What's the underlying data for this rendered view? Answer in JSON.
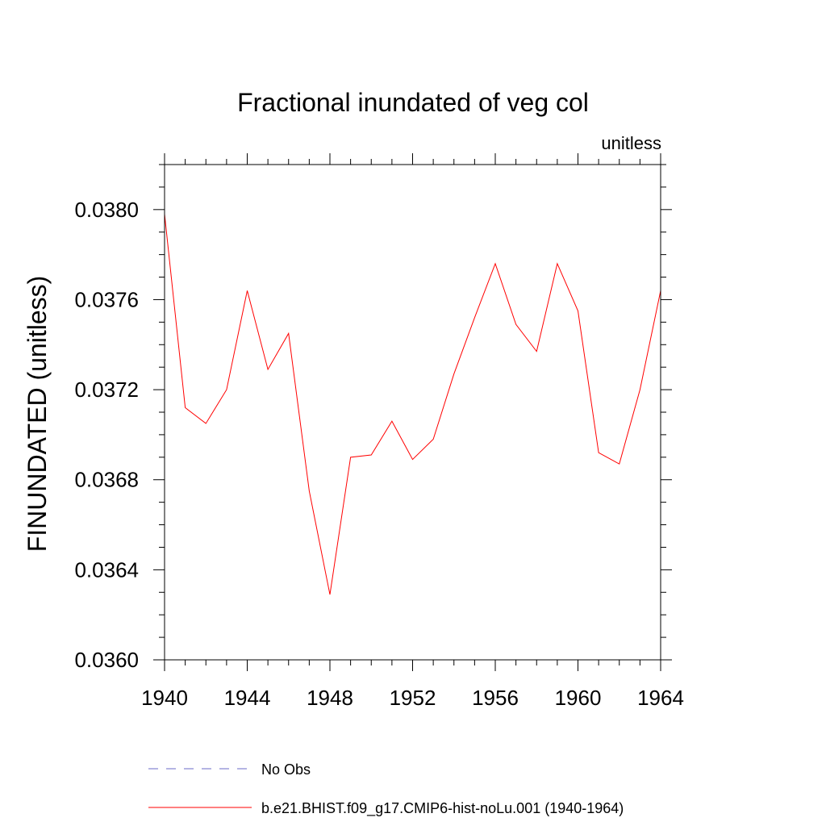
{
  "chart_data": {
    "type": "line",
    "title": "Fractional inundated of veg col",
    "units_label": "unitless",
    "ylabel": "FINUNDATED  (unitless)",
    "xlabel": "",
    "xlim": [
      1940,
      1964
    ],
    "ylim": [
      0.036,
      0.0382
    ],
    "x_ticks": [
      "1940",
      "1944",
      "1948",
      "1952",
      "1956",
      "1960",
      "1964"
    ],
    "y_ticks": [
      "0.0360",
      "0.0364",
      "0.0368",
      "0.0372",
      "0.0376",
      "0.0380"
    ],
    "grid": false,
    "legend_position": "bottom",
    "series": [
      {
        "name": "No Obs",
        "color": "#6b6bc8",
        "style": "dashed",
        "x": [],
        "values": []
      },
      {
        "name": "b.e21.BHIST.f09_g17.CMIP6-hist-noLu.001 (1940-1964)",
        "color": "#ff0000",
        "style": "solid",
        "x": [
          1940,
          1941,
          1942,
          1943,
          1944,
          1945,
          1946,
          1947,
          1948,
          1949,
          1950,
          1951,
          1952,
          1953,
          1954,
          1955,
          1956,
          1957,
          1958,
          1959,
          1960,
          1961,
          1962,
          1963,
          1964
        ],
        "values": [
          0.03798,
          0.03712,
          0.03705,
          0.0372,
          0.03764,
          0.03729,
          0.03745,
          0.03675,
          0.03629,
          0.0369,
          0.03691,
          0.03706,
          0.03689,
          0.03698,
          0.03727,
          0.03752,
          0.03776,
          0.03749,
          0.03737,
          0.03776,
          0.03755,
          0.03692,
          0.03687,
          0.0372,
          0.03764
        ]
      }
    ]
  }
}
